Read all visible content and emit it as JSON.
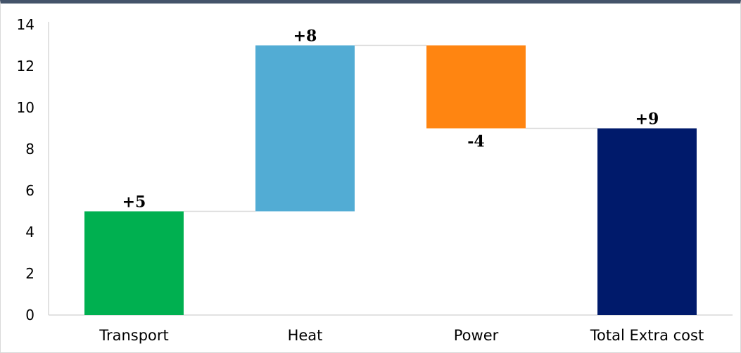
{
  "chart_data": {
    "type": "bar",
    "subtype": "waterfall",
    "categories": [
      "Transport",
      "Heat",
      "Power",
      "Total Extra cost"
    ],
    "values": [
      5,
      8,
      -4,
      9
    ],
    "data_labels": [
      "+5",
      "+8",
      "-4",
      "+9"
    ],
    "bar_kinds": [
      "delta",
      "delta",
      "delta",
      "total"
    ],
    "colors": [
      "#00b050",
      "#52acd4",
      "#ff8511",
      "#001a6b"
    ],
    "connector_color": "#d9d9d9",
    "axis_color": "#d9d9d9",
    "title": "",
    "xlabel": "",
    "ylabel": "",
    "ylim": [
      0,
      14
    ],
    "yticks": [
      0,
      2,
      4,
      6,
      8,
      10,
      12,
      14
    ],
    "ytick_labels": [
      "0",
      "2",
      "4",
      "6",
      "8",
      "10",
      "12",
      "14"
    ],
    "grid": false,
    "legend": "none"
  }
}
